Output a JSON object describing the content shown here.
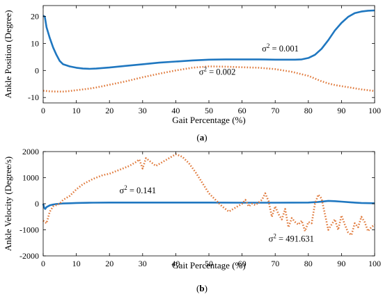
{
  "chart_data": [
    {
      "type": "line",
      "panel_label": "(a)",
      "xlabel": "Gait Percentage  (%)",
      "ylabel": "Ankle Position (Degree)",
      "xlim": [
        0,
        100
      ],
      "ylim": [
        -12,
        24
      ],
      "xticks": [
        0,
        10,
        20,
        30,
        40,
        50,
        60,
        70,
        80,
        90,
        100
      ],
      "yticks": [
        -10,
        0,
        10,
        20
      ],
      "grid": false,
      "annotations": [
        {
          "sup_base": "σ",
          "sup": "2",
          "rest": " = 0.001",
          "x": 66,
          "y": 7
        },
        {
          "sup_base": "σ",
          "sup": "2",
          "rest": " = 0.002",
          "x": 47,
          "y": -1.6
        }
      ],
      "series": [
        {
          "color": "#1f77c0",
          "style": "solid",
          "x": [
            0,
            0.5,
            1,
            2,
            3,
            4,
            5,
            6,
            8,
            10,
            12,
            14,
            16,
            18,
            20,
            25,
            30,
            35,
            40,
            45,
            50,
            55,
            60,
            65,
            70,
            74,
            76,
            78,
            80,
            82,
            84,
            86,
            88,
            90,
            92,
            94,
            96,
            98,
            100
          ],
          "values": [
            20.3,
            19.8,
            16,
            12,
            8.5,
            5.8,
            3.5,
            2.3,
            1.5,
            1.0,
            0.7,
            0.6,
            0.7,
            0.9,
            1.1,
            1.7,
            2.3,
            2.9,
            3.3,
            3.7,
            4.0,
            4.1,
            4.1,
            4.1,
            4.0,
            4.0,
            4.0,
            4.1,
            4.6,
            5.8,
            8.0,
            11.2,
            14.8,
            17.6,
            19.8,
            21.2,
            21.8,
            22.1,
            22.2
          ]
        },
        {
          "color": "#e07a3c",
          "style": "dotted",
          "x": [
            0,
            2,
            4,
            6,
            8,
            10,
            12,
            14,
            16,
            18,
            20,
            25,
            30,
            35,
            40,
            45,
            50,
            55,
            60,
            65,
            70,
            75,
            80,
            82,
            84,
            86,
            88,
            90,
            92,
            94,
            96,
            98,
            100
          ],
          "values": [
            -7.5,
            -7.7,
            -7.8,
            -7.8,
            -7.6,
            -7.3,
            -7.0,
            -6.7,
            -6.3,
            -5.8,
            -5.3,
            -4.0,
            -2.5,
            -1.2,
            0.0,
            1.0,
            1.5,
            1.4,
            1.2,
            1.0,
            0.5,
            -0.5,
            -2.0,
            -3.0,
            -4.0,
            -4.8,
            -5.4,
            -5.8,
            -6.2,
            -6.6,
            -7.0,
            -7.3,
            -7.6
          ]
        }
      ]
    },
    {
      "type": "line",
      "panel_label": "(b)",
      "xlabel": "Gait Percentage  (%)",
      "ylabel": "Ankle Velocity (Degree/s)",
      "xlim": [
        0,
        100
      ],
      "ylim": [
        -2000,
        2000
      ],
      "xticks": [
        0,
        10,
        20,
        30,
        40,
        50,
        60,
        70,
        80,
        90,
        100
      ],
      "yticks": [
        -2000,
        -1000,
        0,
        1000,
        2000
      ],
      "grid": false,
      "annotations": [
        {
          "sup_base": "σ",
          "sup": "2",
          "rest": " = 0.141",
          "x": 23,
          "y": 400
        },
        {
          "sup_base": "σ",
          "sup": "2",
          "rest": " = 491.631",
          "x": 68,
          "y": -1450
        }
      ],
      "series": [
        {
          "color": "#1f77c0",
          "style": "solid",
          "x": [
            0,
            0.3,
            0.6,
            1,
            2,
            3,
            4,
            5,
            6,
            8,
            10,
            15,
            20,
            30,
            40,
            50,
            60,
            70,
            80,
            83,
            86,
            88,
            90,
            93,
            96,
            100
          ],
          "values": [
            0,
            -150,
            -200,
            -130,
            -60,
            -30,
            -10,
            0,
            10,
            20,
            30,
            40,
            45,
            45,
            45,
            45,
            40,
            40,
            45,
            70,
            110,
            100,
            80,
            50,
            30,
            20
          ]
        },
        {
          "color": "#e07a3c",
          "style": "dotted",
          "x": [
            0,
            1,
            2,
            3,
            4,
            5,
            6,
            8,
            10,
            12,
            15,
            18,
            20,
            22,
            24,
            26,
            28,
            29,
            30,
            31,
            32,
            33,
            34,
            36,
            38,
            40,
            42,
            44,
            46,
            48,
            50,
            52,
            54,
            56,
            58,
            60,
            61,
            62,
            63,
            64,
            65,
            66,
            67,
            68,
            69,
            70,
            71,
            72,
            73,
            74,
            75,
            76,
            77,
            78,
            79,
            80,
            81,
            82,
            83,
            84,
            85,
            86,
            87,
            88,
            89,
            90,
            91,
            92,
            93,
            94,
            95,
            96,
            97,
            98,
            99,
            100
          ],
          "values": [
            -650,
            -750,
            -300,
            -100,
            -50,
            0,
            150,
            300,
            550,
            750,
            950,
            1100,
            1150,
            1250,
            1350,
            1450,
            1600,
            1700,
            1350,
            1750,
            1650,
            1550,
            1450,
            1600,
            1750,
            1900,
            1800,
            1550,
            1200,
            800,
            400,
            150,
            -100,
            -300,
            -150,
            0,
            150,
            -100,
            0,
            -50,
            50,
            150,
            400,
            100,
            -500,
            -100,
            -400,
            -600,
            -200,
            -900,
            -550,
            -700,
            -800,
            -650,
            -1050,
            -700,
            -750,
            0,
            350,
            200,
            -400,
            -1000,
            -800,
            -600,
            -1000,
            -450,
            -800,
            -1100,
            -1200,
            -750,
            -900,
            -500,
            -700,
            -1050,
            -900,
            -800
          ]
        }
      ]
    }
  ]
}
